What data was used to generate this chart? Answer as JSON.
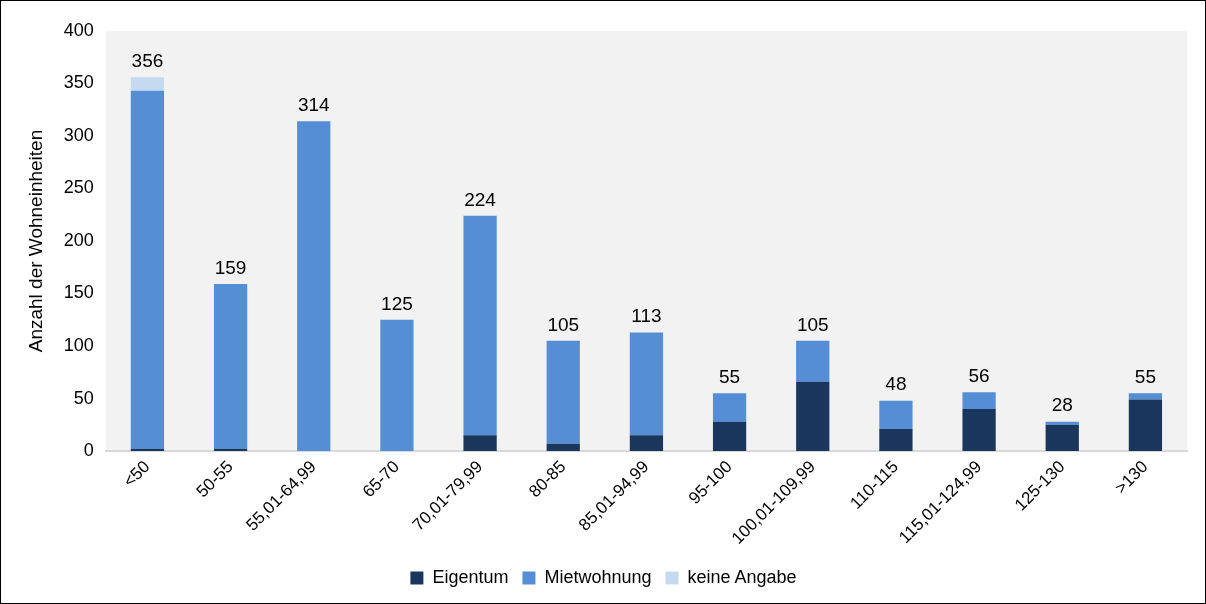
{
  "chart_data": {
    "type": "bar",
    "stacked": true,
    "ylabel": "Anzahl der Wohneinheiten",
    "categories": [
      "<50",
      "50-55",
      "55,01-64,99",
      "65-70",
      "70,01-79,99",
      "80-85",
      "85,01-94,99",
      "95-100",
      "100,01-109,99",
      "110-115",
      "115,01-124,99",
      "125-130",
      ">130"
    ],
    "series": [
      {
        "name": "Eigentum",
        "color": "#1a365d",
        "values": [
          2,
          2,
          0,
          0,
          15,
          7,
          15,
          28,
          66,
          21,
          40,
          25,
          49
        ]
      },
      {
        "name": "Mietwohnung",
        "color": "#558ed5",
        "values": [
          341,
          157,
          314,
          125,
          209,
          98,
          98,
          27,
          39,
          27,
          16,
          3,
          6
        ]
      },
      {
        "name": "keine Angabe",
        "color": "#c5d9f1",
        "values": [
          13,
          0,
          0,
          0,
          0,
          0,
          0,
          0,
          0,
          0,
          0,
          0,
          0
        ]
      }
    ],
    "totals": [
      "356",
      "159",
      "314",
      "125",
      "224",
      "105",
      "113",
      "55",
      "105",
      "48",
      "56",
      "28",
      "55"
    ],
    "ylim": [
      0,
      400
    ],
    "yticks": [
      0,
      50,
      100,
      150,
      200,
      250,
      300,
      350,
      400
    ],
    "grid": false,
    "legend": "bottom"
  }
}
